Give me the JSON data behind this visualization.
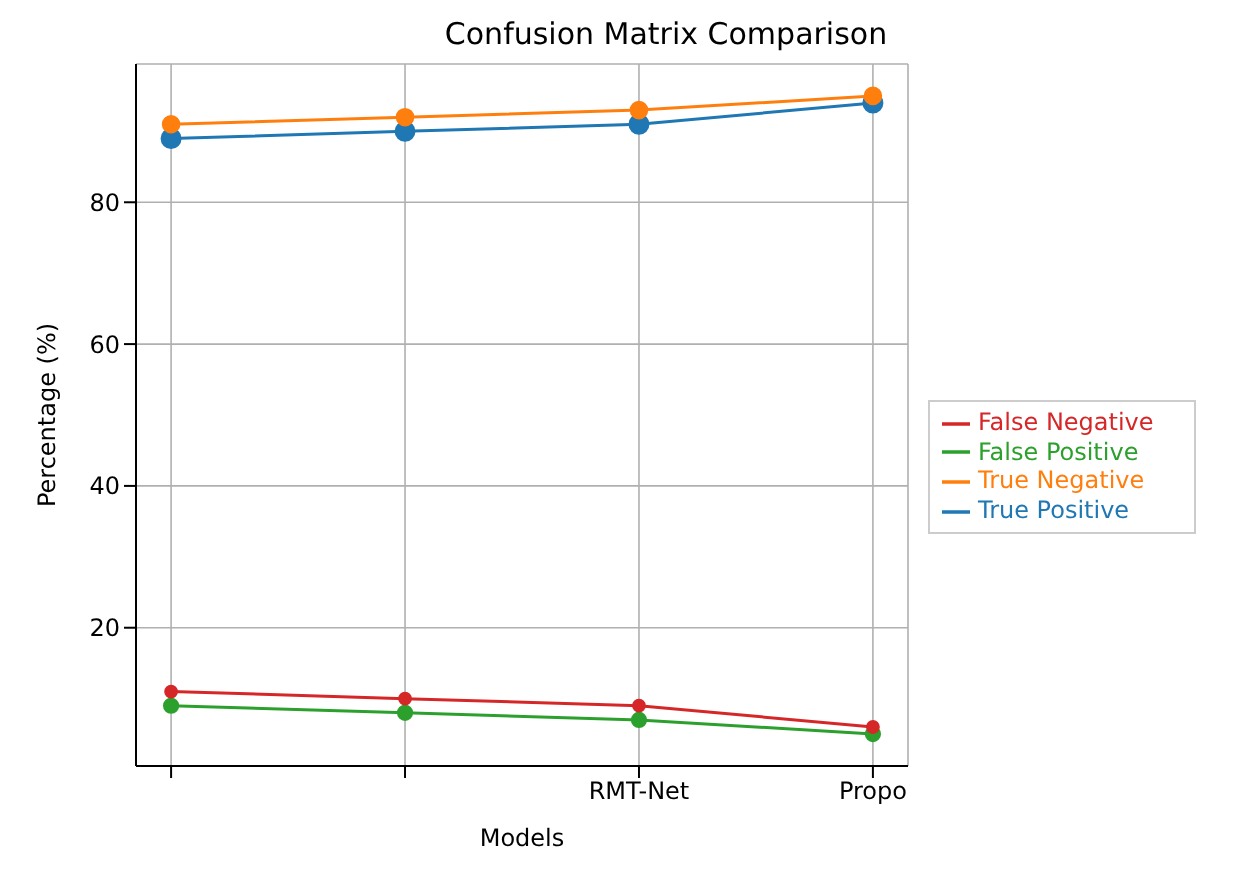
{
  "chart_data": {
    "type": "line",
    "title": "Confusion Matrix Comparison",
    "xlabel": "Models",
    "ylabel": "Percentage (%)",
    "categories": [
      null,
      null,
      "RMT-Net",
      "Propo"
    ],
    "series": [
      {
        "name": "True Positive",
        "color": "#1f77b4",
        "values": [
          89,
          90,
          91,
          94
        ]
      },
      {
        "name": "True Negative",
        "color": "#ff7f0e",
        "values": [
          91,
          92,
          93,
          95
        ]
      },
      {
        "name": "False Positive",
        "color": "#2ca02c",
        "values": [
          9,
          8,
          7,
          5
        ]
      },
      {
        "name": "False Negative",
        "color": "#d62728",
        "values": [
          11,
          10,
          9,
          6
        ]
      }
    ],
    "ylim": [
      0.5,
      99.5
    ],
    "yticks": [
      20,
      40,
      60,
      80
    ],
    "grid": true,
    "legend": "right",
    "marker": "circle",
    "line_style": "solid"
  }
}
